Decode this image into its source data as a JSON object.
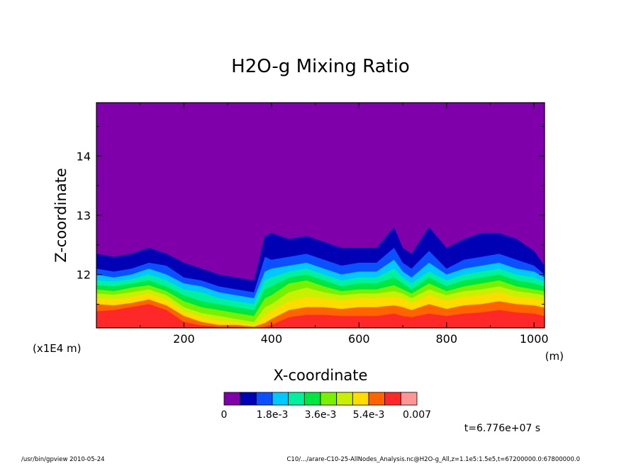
{
  "chart_data": {
    "type": "heatmap",
    "title": "H2O-g Mixing Ratio",
    "xlabel": "X-coordinate",
    "ylabel": "Z-coordinate",
    "x_unit": "(m)",
    "y_unit": "(x1E4 m)",
    "xlim": [
      0,
      1024
    ],
    "ylim": [
      11.1,
      14.9
    ],
    "x_ticks": [
      200,
      400,
      600,
      800,
      1000
    ],
    "y_ticks": [
      12,
      13,
      14
    ],
    "colorbar": {
      "colors": [
        "#7f00aa",
        "#0000b4",
        "#0a50ff",
        "#00c8ff",
        "#00f0a0",
        "#00e640",
        "#78f000",
        "#c8f000",
        "#ffdc00",
        "#ff6400",
        "#ff2828",
        "#ff9696"
      ],
      "tick_labels": [
        "0",
        "1.8e-3",
        "3.6e-3",
        "5.4e-3",
        "0.007"
      ]
    },
    "level_boundaries_z": {
      "x": [
        0,
        40,
        80,
        120,
        160,
        200,
        240,
        280,
        320,
        360,
        385,
        400,
        440,
        480,
        520,
        560,
        600,
        640,
        680,
        700,
        720,
        760,
        800,
        840,
        880,
        920,
        960,
        1000,
        1024
      ],
      "b1": [
        12.35,
        12.3,
        12.35,
        12.45,
        12.35,
        12.2,
        12.1,
        12.0,
        11.95,
        11.9,
        12.65,
        12.7,
        12.6,
        12.65,
        12.55,
        12.45,
        12.45,
        12.45,
        12.8,
        12.45,
        12.35,
        12.8,
        12.45,
        12.6,
        12.7,
        12.7,
        12.6,
        12.4,
        12.15
      ],
      "b2": [
        12.1,
        12.05,
        12.1,
        12.2,
        12.15,
        11.95,
        11.9,
        11.8,
        11.75,
        11.7,
        12.3,
        12.25,
        12.3,
        12.35,
        12.25,
        12.15,
        12.2,
        12.2,
        12.45,
        12.2,
        12.1,
        12.4,
        12.1,
        12.25,
        12.3,
        12.35,
        12.25,
        12.15,
        12.0
      ],
      "b3": [
        12.0,
        11.95,
        12.0,
        12.1,
        12.0,
        11.85,
        11.8,
        11.7,
        11.65,
        11.6,
        12.05,
        12.1,
        12.15,
        12.2,
        12.1,
        12.0,
        12.05,
        12.05,
        12.25,
        12.05,
        11.95,
        12.2,
        12.0,
        12.1,
        12.15,
        12.2,
        12.1,
        12.05,
        11.95
      ],
      "b4": [
        11.9,
        11.88,
        11.92,
        12.0,
        11.9,
        11.75,
        11.7,
        11.6,
        11.55,
        11.5,
        11.9,
        11.95,
        12.05,
        12.1,
        12.0,
        11.9,
        11.95,
        11.95,
        12.1,
        11.95,
        11.85,
        12.05,
        11.9,
        12.0,
        12.05,
        12.1,
        12.0,
        11.95,
        11.88
      ],
      "b5": [
        11.82,
        11.8,
        11.85,
        11.9,
        11.8,
        11.65,
        11.55,
        11.5,
        11.45,
        11.4,
        11.75,
        11.8,
        11.95,
        12.0,
        11.9,
        11.8,
        11.85,
        11.85,
        11.95,
        11.85,
        11.75,
        11.95,
        11.8,
        11.9,
        11.95,
        12.0,
        11.9,
        11.85,
        11.8
      ],
      "b6": [
        11.75,
        11.72,
        11.78,
        11.82,
        11.72,
        11.55,
        11.45,
        11.4,
        11.35,
        11.3,
        11.6,
        11.65,
        11.85,
        11.9,
        11.8,
        11.72,
        11.75,
        11.75,
        11.82,
        11.75,
        11.68,
        11.85,
        11.72,
        11.8,
        11.85,
        11.9,
        11.8,
        11.75,
        11.72
      ],
      "b7": [
        11.68,
        11.66,
        11.7,
        11.75,
        11.65,
        11.45,
        11.35,
        11.3,
        11.25,
        11.2,
        11.45,
        11.5,
        11.7,
        11.78,
        11.7,
        11.65,
        11.68,
        11.68,
        11.72,
        11.68,
        11.6,
        11.75,
        11.65,
        11.72,
        11.75,
        11.8,
        11.72,
        11.68,
        11.65
      ],
      "b8": [
        11.6,
        11.58,
        11.62,
        11.68,
        11.58,
        11.38,
        11.28,
        11.22,
        11.2,
        11.15,
        11.3,
        11.38,
        11.55,
        11.62,
        11.6,
        11.56,
        11.6,
        11.6,
        11.62,
        11.6,
        11.52,
        11.65,
        11.56,
        11.62,
        11.65,
        11.7,
        11.62,
        11.6,
        11.56
      ],
      "b9": [
        11.5,
        11.48,
        11.52,
        11.58,
        11.48,
        11.3,
        11.2,
        11.15,
        11.15,
        11.12,
        11.18,
        11.25,
        11.4,
        11.45,
        11.45,
        11.42,
        11.45,
        11.45,
        11.48,
        11.45,
        11.4,
        11.5,
        11.42,
        11.48,
        11.5,
        11.55,
        11.5,
        11.48,
        11.44
      ],
      "b10": [
        11.38,
        11.4,
        11.45,
        11.5,
        11.4,
        11.2,
        11.14,
        11.12,
        11.12,
        11.1,
        11.12,
        11.15,
        11.28,
        11.32,
        11.32,
        11.3,
        11.3,
        11.3,
        11.34,
        11.3,
        11.28,
        11.34,
        11.3,
        11.34,
        11.36,
        11.4,
        11.36,
        11.34,
        11.3
      ]
    }
  },
  "annotations": {
    "time": "t=6.776e+07 s",
    "footer_left": "/usr/bin/gpview  2010-05-24",
    "footer_right": "C10/.../arare-C10-25-AllNodes_Analysis.nc@H2O-g_All,z=1.1e5:1.5e5,t=67200000.0:67800000.0"
  }
}
